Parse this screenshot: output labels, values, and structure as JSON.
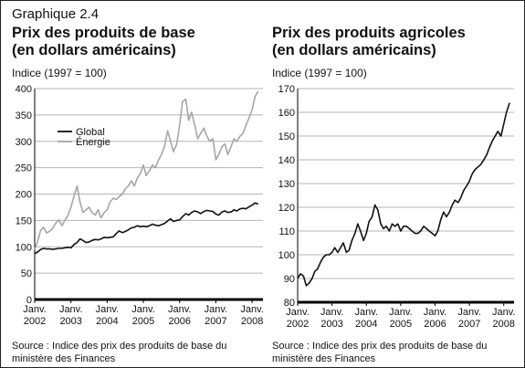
{
  "header": {
    "graphique": "Graphique 2.4"
  },
  "left": {
    "title_line1": "Prix des produits de base",
    "title_line2": "(en dollars américains)",
    "ylabel": "Indice (1997 = 100)",
    "source_line1": "Source : Indice des prix des produits de base du",
    "source_line2": "ministère des Finances"
  },
  "right": {
    "title_line1": "Prix des produits agricoles",
    "title_line2": "(en dollars américains)",
    "ylabel": "Indice (1997 = 100)",
    "source_line1": "Source : Indice des prix des produits de base du",
    "source_line2": "ministère des Finances"
  },
  "colors": {
    "global": "#111111",
    "energie": "#a6a6a6",
    "grid": "#b5b5b5",
    "axis": "#000000"
  },
  "chart_data": [
    {
      "type": "line",
      "title": "Prix des produits de base (en dollars américains)",
      "ylabel": "Indice (1997 = 100)",
      "xlabel": "",
      "ylim": [
        0,
        400
      ],
      "yticks": [
        0,
        50,
        100,
        150,
        200,
        250,
        300,
        350,
        400
      ],
      "xlim": [
        2002,
        2008.3
      ],
      "xticks": [
        {
          "x": 2002,
          "label1": "Janv.",
          "label2": "2002"
        },
        {
          "x": 2003,
          "label1": "Janv.",
          "label2": "2003"
        },
        {
          "x": 2004,
          "label1": "Janv.",
          "label2": "2004"
        },
        {
          "x": 2005,
          "label1": "Janv.",
          "label2": "2005"
        },
        {
          "x": 2006,
          "label1": "Janv.",
          "label2": "2006"
        },
        {
          "x": 2007,
          "label1": "Janv.",
          "label2": "2007"
        },
        {
          "x": 2008,
          "label1": "Janv.",
          "label2": "2008"
        }
      ],
      "grid": true,
      "legend": "upper-left",
      "series": [
        {
          "name": "Global",
          "color": "#111111",
          "x": [
            2002.0,
            2002.08,
            2002.17,
            2002.25,
            2002.33,
            2002.42,
            2002.5,
            2002.58,
            2002.67,
            2002.75,
            2002.83,
            2002.92,
            2003.0,
            2003.08,
            2003.17,
            2003.25,
            2003.33,
            2003.42,
            2003.5,
            2003.58,
            2003.67,
            2003.75,
            2003.83,
            2003.92,
            2004.0,
            2004.08,
            2004.17,
            2004.25,
            2004.33,
            2004.42,
            2004.5,
            2004.58,
            2004.67,
            2004.75,
            2004.83,
            2004.92,
            2005.0,
            2005.08,
            2005.17,
            2005.25,
            2005.33,
            2005.42,
            2005.5,
            2005.58,
            2005.67,
            2005.75,
            2005.83,
            2005.92,
            2006.0,
            2006.08,
            2006.17,
            2006.25,
            2006.33,
            2006.42,
            2006.5,
            2006.58,
            2006.67,
            2006.75,
            2006.83,
            2006.92,
            2007.0,
            2007.08,
            2007.17,
            2007.25,
            2007.33,
            2007.42,
            2007.5,
            2007.58,
            2007.67,
            2007.75,
            2007.83,
            2007.92,
            2008.0,
            2008.08,
            2008.17
          ],
          "values": [
            87,
            90,
            95,
            97,
            96,
            96,
            95,
            96,
            97,
            97,
            98,
            99,
            98,
            104,
            108,
            115,
            112,
            108,
            109,
            112,
            114,
            113,
            115,
            118,
            117,
            118,
            119,
            125,
            130,
            127,
            129,
            132,
            136,
            137,
            140,
            138,
            139,
            138,
            140,
            143,
            141,
            140,
            142,
            144,
            149,
            153,
            148,
            150,
            151,
            157,
            163,
            160,
            165,
            168,
            166,
            163,
            167,
            169,
            168,
            167,
            162,
            160,
            166,
            168,
            165,
            166,
            170,
            168,
            172,
            173,
            172,
            176,
            179,
            183,
            181
          ]
        },
        {
          "name": "Énergie",
          "color": "#a6a6a6",
          "x": [
            2002.0,
            2002.08,
            2002.17,
            2002.25,
            2002.33,
            2002.42,
            2002.5,
            2002.58,
            2002.67,
            2002.75,
            2002.83,
            2002.92,
            2003.0,
            2003.08,
            2003.17,
            2003.25,
            2003.33,
            2003.42,
            2003.5,
            2003.58,
            2003.67,
            2003.75,
            2003.83,
            2003.92,
            2004.0,
            2004.08,
            2004.17,
            2004.25,
            2004.33,
            2004.42,
            2004.5,
            2004.58,
            2004.67,
            2004.75,
            2004.83,
            2004.92,
            2005.0,
            2005.08,
            2005.17,
            2005.25,
            2005.33,
            2005.42,
            2005.5,
            2005.58,
            2005.67,
            2005.75,
            2005.83,
            2005.92,
            2006.0,
            2006.08,
            2006.17,
            2006.25,
            2006.33,
            2006.42,
            2006.5,
            2006.58,
            2006.67,
            2006.75,
            2006.83,
            2006.92,
            2007.0,
            2007.08,
            2007.17,
            2007.25,
            2007.33,
            2007.42,
            2007.5,
            2007.58,
            2007.67,
            2007.75,
            2007.83,
            2007.92,
            2008.0,
            2008.08,
            2008.17
          ],
          "values": [
            95,
            110,
            132,
            137,
            126,
            130,
            135,
            145,
            151,
            140,
            150,
            160,
            175,
            195,
            215,
            185,
            165,
            170,
            175,
            165,
            160,
            170,
            155,
            165,
            170,
            185,
            192,
            190,
            195,
            200,
            210,
            215,
            225,
            215,
            230,
            240,
            255,
            235,
            245,
            255,
            250,
            265,
            275,
            290,
            320,
            300,
            280,
            295,
            330,
            375,
            380,
            340,
            355,
            330,
            305,
            315,
            325,
            310,
            300,
            305,
            265,
            275,
            290,
            295,
            275,
            290,
            305,
            300,
            310,
            315,
            330,
            345,
            360,
            385,
            395
          ]
        }
      ]
    },
    {
      "type": "line",
      "title": "Prix des produits agricoles (en dollars américains)",
      "ylabel": "Indice (1997 = 100)",
      "xlabel": "",
      "ylim": [
        80,
        170
      ],
      "yticks": [
        80,
        90,
        100,
        110,
        120,
        130,
        140,
        150,
        160,
        170
      ],
      "xlim": [
        2002,
        2008.3
      ],
      "xticks": [
        {
          "x": 2002,
          "label1": "Janv.",
          "label2": "2002"
        },
        {
          "x": 2003,
          "label1": "Janv.",
          "label2": "2003"
        },
        {
          "x": 2004,
          "label1": "Janv.",
          "label2": "2004"
        },
        {
          "x": 2005,
          "label1": "Janv.",
          "label2": "2005"
        },
        {
          "x": 2006,
          "label1": "Janv.",
          "label2": "2006"
        },
        {
          "x": 2007,
          "label1": "Janv.",
          "label2": "2007"
        },
        {
          "x": 2008,
          "label1": "Janv.",
          "label2": "2008"
        }
      ],
      "grid": true,
      "series": [
        {
          "color": "#111111",
          "x": [
            2002.0,
            2002.08,
            2002.17,
            2002.25,
            2002.33,
            2002.42,
            2002.5,
            2002.58,
            2002.67,
            2002.75,
            2002.83,
            2002.92,
            2003.0,
            2003.08,
            2003.17,
            2003.25,
            2003.33,
            2003.42,
            2003.5,
            2003.58,
            2003.67,
            2003.75,
            2003.83,
            2003.92,
            2004.0,
            2004.08,
            2004.17,
            2004.25,
            2004.33,
            2004.42,
            2004.5,
            2004.58,
            2004.67,
            2004.75,
            2004.83,
            2004.92,
            2005.0,
            2005.08,
            2005.17,
            2005.25,
            2005.33,
            2005.42,
            2005.5,
            2005.58,
            2005.67,
            2005.75,
            2005.83,
            2005.92,
            2006.0,
            2006.08,
            2006.17,
            2006.25,
            2006.33,
            2006.42,
            2006.5,
            2006.58,
            2006.67,
            2006.75,
            2006.83,
            2006.92,
            2007.0,
            2007.08,
            2007.17,
            2007.25,
            2007.33,
            2007.42,
            2007.5,
            2007.58,
            2007.67,
            2007.75,
            2007.83,
            2007.92,
            2008.0,
            2008.08,
            2008.17
          ],
          "values": [
            90,
            92,
            91,
            87,
            88,
            90,
            93,
            94,
            97,
            99,
            100,
            100,
            101,
            103,
            101,
            103,
            105,
            101,
            102,
            106,
            109,
            113,
            110,
            106,
            109,
            114,
            116,
            121,
            119,
            113,
            111,
            112,
            110,
            113,
            112,
            113,
            110,
            112,
            112,
            111,
            110,
            109,
            109,
            110,
            112,
            111,
            110,
            109,
            108,
            110,
            115,
            118,
            116,
            118,
            121,
            123,
            122,
            124,
            127,
            129,
            131,
            134,
            136,
            137,
            138,
            140,
            142,
            145,
            148,
            150,
            152,
            150,
            155,
            160,
            164
          ]
        }
      ]
    }
  ]
}
